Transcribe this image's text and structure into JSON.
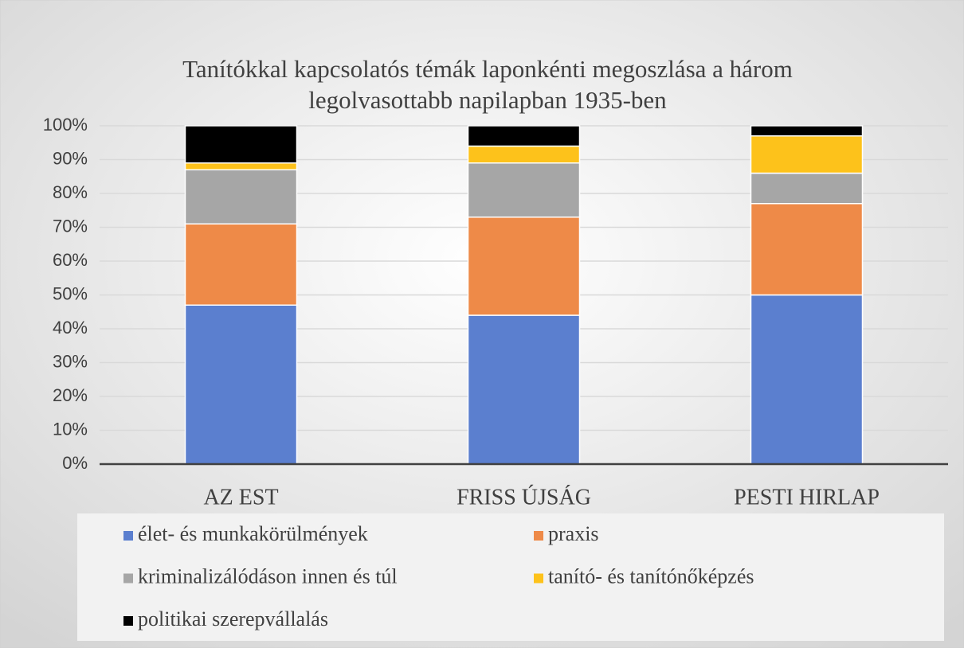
{
  "chart_data": {
    "type": "stacked_bar",
    "title": [
      "Tanítókkal kapcsolatós témák laponkénti megoszlása a három",
      "legolvasottabb napilapban 1935-ben"
    ],
    "categories": [
      "AZ EST",
      "FRISS ÚJSÁG",
      "PESTI HIRLAP"
    ],
    "series": [
      {
        "name": "élet- és munkakörülmények",
        "color": "#5b7fcf",
        "values": [
          47,
          44,
          50
        ]
      },
      {
        "name": "praxis",
        "color": "#ee8a48",
        "values": [
          24,
          29,
          27
        ]
      },
      {
        "name": "kriminalizálódáson innen és túl",
        "color": "#a6a6a6",
        "values": [
          16,
          16,
          9
        ]
      },
      {
        "name": "tanító- és tanítónőképzés",
        "color": "#fdc21b",
        "values": [
          2,
          5,
          11
        ]
      },
      {
        "name": "politikai szerepvállalás",
        "color": "#000000",
        "values": [
          11,
          6,
          3
        ]
      }
    ],
    "ylim": [
      0,
      100
    ],
    "yticks": [
      {
        "value": 0,
        "label": "0%"
      },
      {
        "value": 10,
        "label": "10%"
      },
      {
        "value": 20,
        "label": "20%"
      },
      {
        "value": 30,
        "label": "30%"
      },
      {
        "value": 40,
        "label": "40%"
      },
      {
        "value": 50,
        "label": "50%"
      },
      {
        "value": 60,
        "label": "60%"
      },
      {
        "value": 70,
        "label": "70%"
      },
      {
        "value": 80,
        "label": "80%"
      },
      {
        "value": 90,
        "label": "90%"
      },
      {
        "value": 100,
        "label": "100%"
      }
    ],
    "grid": true,
    "legend": "bottom"
  }
}
